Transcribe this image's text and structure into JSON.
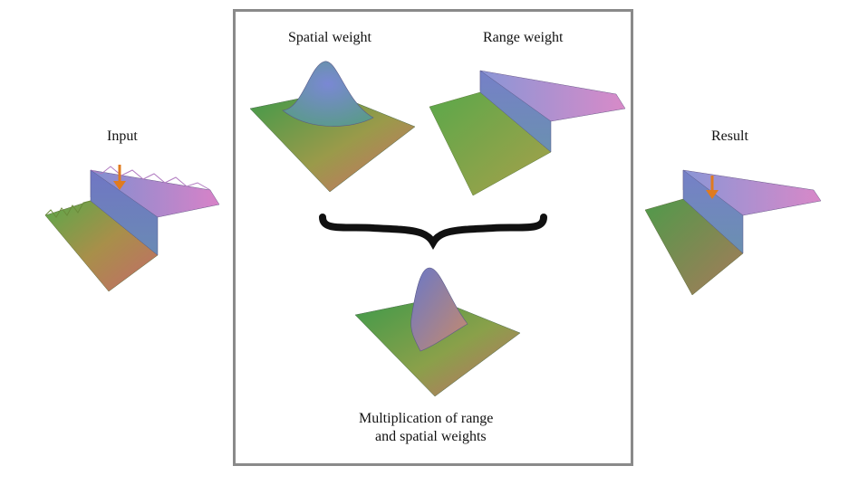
{
  "labels": {
    "input": "Input",
    "spatial_weight": "Spatial weight",
    "range_weight": "Range weight",
    "result": "Result",
    "multiplication_line1": "Multiplication of range",
    "multiplication_line2": "and spatial weights"
  },
  "colors": {
    "frame_border": "#8a8a8a",
    "arrow": "#e07b1f",
    "brace": "#111111"
  }
}
